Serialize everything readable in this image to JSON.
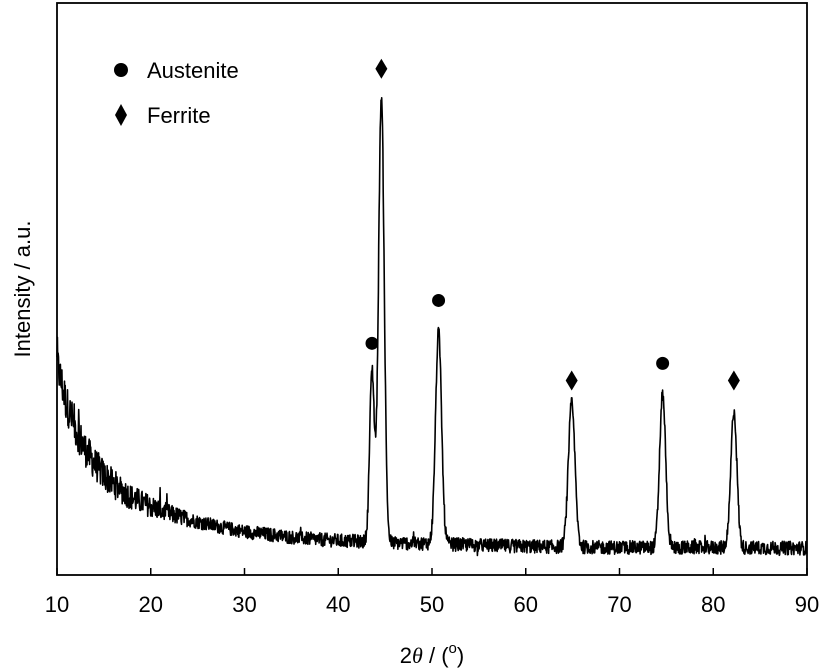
{
  "chart_data": {
    "type": "line",
    "title": "",
    "xlabel": {
      "prefix": "2",
      "theta": "θ",
      "middle": " / (",
      "sup": "o",
      "suffix": ")"
    },
    "ylabel": "Intensity / a.u.",
    "xlim": [
      10,
      90
    ],
    "ylim": [
      0,
      100
    ],
    "xticks": [
      10,
      20,
      30,
      40,
      50,
      60,
      70,
      80,
      90
    ],
    "yticks_shown": false,
    "grid": false,
    "legend_position": "top-left",
    "legend": [
      {
        "marker": "circle",
        "label": "Austenite"
      },
      {
        "marker": "diamond",
        "label": "Ferrite"
      }
    ],
    "series": [
      {
        "color": "#000000",
        "baseline": [
          [
            10,
            37
          ],
          [
            11,
            30
          ],
          [
            12,
            25.5
          ],
          [
            13,
            22
          ],
          [
            14,
            19.5
          ],
          [
            15,
            17.5
          ],
          [
            16,
            16
          ],
          [
            17,
            14.7
          ],
          [
            18,
            13.5
          ],
          [
            20,
            12
          ],
          [
            22,
            10.7
          ],
          [
            25,
            9.3
          ],
          [
            28,
            8.2
          ],
          [
            30,
            7.6
          ],
          [
            33,
            7
          ],
          [
            35,
            6.6
          ],
          [
            38,
            6.2
          ],
          [
            40,
            6
          ],
          [
            43,
            5.8
          ],
          [
            46,
            5.6
          ],
          [
            50,
            5.5
          ],
          [
            55,
            5.2
          ],
          [
            60,
            5
          ],
          [
            70,
            4.8
          ],
          [
            80,
            4.8
          ],
          [
            90,
            4.7
          ]
        ],
        "peaks": [
          {
            "x": 43.6,
            "height": 30,
            "width": 0.25
          },
          {
            "x": 44.6,
            "height": 78,
            "width": 0.3
          },
          {
            "x": 50.7,
            "height": 37,
            "width": 0.32
          },
          {
            "x": 64.9,
            "height": 25,
            "width": 0.35
          },
          {
            "x": 74.6,
            "height": 27,
            "width": 0.32
          },
          {
            "x": 82.2,
            "height": 24,
            "width": 0.32
          }
        ],
        "noise_amplitude": 1.2
      }
    ],
    "annotations": [
      {
        "marker": "circle",
        "x": 43.6,
        "y": 40.5
      },
      {
        "marker": "diamond",
        "x": 44.6,
        "y": 88.5
      },
      {
        "marker": "circle",
        "x": 50.7,
        "y": 48
      },
      {
        "marker": "diamond",
        "x": 64.9,
        "y": 34
      },
      {
        "marker": "circle",
        "x": 74.6,
        "y": 37
      },
      {
        "marker": "diamond",
        "x": 82.2,
        "y": 34
      }
    ]
  }
}
